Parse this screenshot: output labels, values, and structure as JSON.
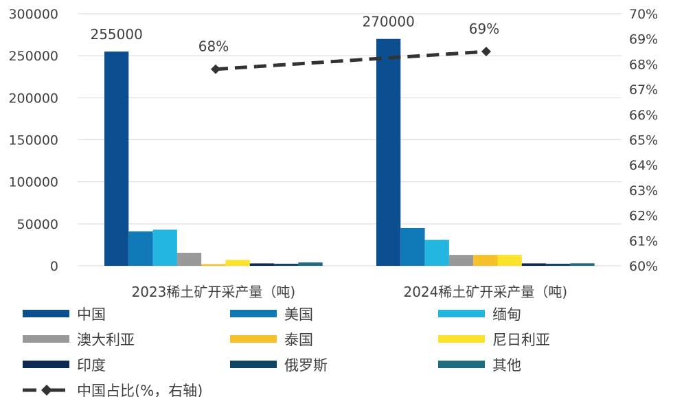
{
  "chart_data": {
    "type": "bar",
    "categories": [
      "2023稀土矿开采产量（吨)",
      "2024稀土矿开采产量（吨)"
    ],
    "series": [
      {
        "name": "中国",
        "color": "#0b4f91",
        "values": [
          255000,
          270000
        ],
        "labels": [
          "255000",
          "270000"
        ]
      },
      {
        "name": "美国",
        "color": "#1279b8",
        "values": [
          41000,
          45000
        ]
      },
      {
        "name": "缅甸",
        "color": "#22b6e0",
        "values": [
          43000,
          31000
        ]
      },
      {
        "name": "澳大利亚",
        "color": "#999999",
        "values": [
          15500,
          13000
        ]
      },
      {
        "name": "泰国",
        "color": "#f7c12a",
        "values": [
          2000,
          13000
        ]
      },
      {
        "name": "尼日利亚",
        "color": "#fce32b",
        "values": [
          7000,
          13000
        ]
      },
      {
        "name": "印度",
        "color": "#0d2a52",
        "values": [
          2900,
          2900
        ]
      },
      {
        "name": "俄罗斯",
        "color": "#0f4463",
        "values": [
          2500,
          2500
        ]
      },
      {
        "name": "其他",
        "color": "#1e6e80",
        "values": [
          4000,
          3000
        ]
      }
    ],
    "line_series": {
      "name": "中国占比(%，右轴)",
      "color": "#333333",
      "values": [
        67.8,
        68.5
      ],
      "labels": [
        "68%",
        "69%"
      ],
      "axis": "right"
    },
    "ylim": [
      0,
      300000
    ],
    "yticks": [
      "0",
      "50000",
      "100000",
      "150000",
      "200000",
      "250000",
      "300000"
    ],
    "y2lim": [
      60,
      70
    ],
    "y2ticks": [
      "60%",
      "61%",
      "62%",
      "63%",
      "64%",
      "65%",
      "66%",
      "67%",
      "68%",
      "69%",
      "70%"
    ],
    "grid": true,
    "legend": "bottom"
  }
}
